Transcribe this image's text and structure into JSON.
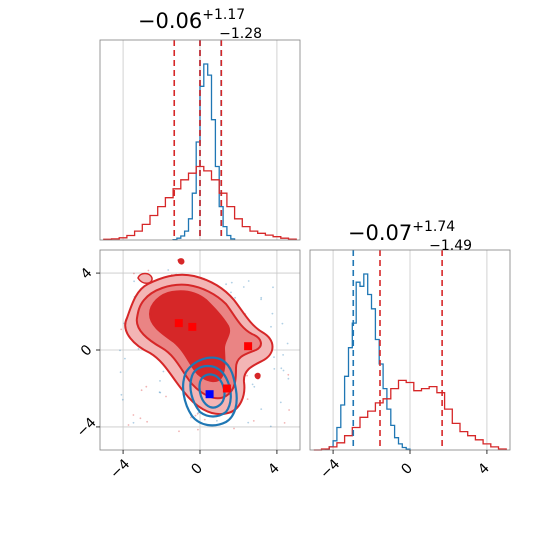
{
  "chart_data": [
    {
      "type": "histogram",
      "panel": "top-left marginal (parameter 1)",
      "title": {
        "median": "−0.06",
        "upper": "+1.17",
        "lower": "−1.28"
      },
      "xlim": [
        -5.2,
        5.2
      ],
      "series": [
        {
          "color": "#1f77b4",
          "bins": [
            -1.4,
            -1.2,
            -1.0,
            -0.8,
            -0.6,
            -0.4,
            -0.2,
            0.0,
            0.2,
            0.4,
            0.6,
            0.8,
            1.0,
            1.2,
            1.4,
            1.6,
            1.8
          ],
          "counts": [
            2,
            8,
            18,
            40,
            95,
            210,
            440,
            690,
            790,
            740,
            540,
            330,
            150,
            60,
            20,
            5
          ],
          "quantile_lines": [
            0.0,
            1.1
          ]
        },
        {
          "color": "#d62728",
          "bins": [
            -5.0,
            -4.6,
            -4.2,
            -3.8,
            -3.4,
            -3.0,
            -2.6,
            -2.2,
            -1.8,
            -1.4,
            -1.0,
            -0.6,
            -0.2,
            0.2,
            0.6,
            1.0,
            1.4,
            1.8,
            2.2,
            2.6,
            3.0,
            3.4,
            3.8,
            4.2,
            4.6,
            5.0
          ],
          "counts": [
            3,
            5,
            10,
            20,
            40,
            70,
            110,
            150,
            190,
            230,
            270,
            300,
            330,
            310,
            270,
            210,
            150,
            95,
            60,
            40,
            30,
            22,
            15,
            8,
            4
          ],
          "quantile_lines": [
            -1.34,
            0.0,
            1.11
          ]
        }
      ]
    },
    {
      "type": "contour",
      "panel": "bottom-left joint (parameter 1 vs parameter 2)",
      "xlim": [
        -5.2,
        5.2
      ],
      "ylim": [
        -5.2,
        5.2
      ],
      "xticks": [
        "−4",
        "0",
        "4"
      ],
      "yticks": [
        "−4",
        "0",
        "4"
      ],
      "series": [
        {
          "color": "#d62728",
          "levels": 3,
          "markers": [
            [
              -1.1,
              1.4
            ],
            [
              -0.4,
              1.2
            ],
            [
              2.5,
              0.2
            ],
            [
              1.4,
              -2.0
            ]
          ]
        },
        {
          "color": "#1f77b4",
          "levels": 3,
          "markers": [
            [
              0.5,
              -2.3
            ]
          ]
        }
      ]
    },
    {
      "type": "histogram",
      "panel": "bottom-right marginal (parameter 2)",
      "title": {
        "median": "−0.07",
        "upper": "+1.74",
        "lower": "−1.49"
      },
      "xlim": [
        -5.2,
        5.2
      ],
      "xticks": [
        "−4",
        "0",
        "4"
      ],
      "series": [
        {
          "color": "#1f77b4",
          "bins": [
            -4.4,
            -4.2,
            -4.0,
            -3.8,
            -3.6,
            -3.4,
            -3.2,
            -3.0,
            -2.8,
            -2.6,
            -2.4,
            -2.2,
            -2.0,
            -1.8,
            -1.6,
            -1.4,
            -1.2,
            -1.0,
            -0.8,
            -0.6,
            -0.4,
            -0.2,
            0.0
          ],
          "counts": [
            3,
            15,
            45,
            110,
            220,
            360,
            500,
            620,
            820,
            800,
            860,
            760,
            690,
            540,
            420,
            300,
            200,
            120,
            60,
            30,
            12,
            4
          ],
          "quantile_lines": [
            -2.95
          ]
        },
        {
          "color": "#d62728",
          "bins": [
            -5.0,
            -4.6,
            -4.2,
            -3.8,
            -3.4,
            -3.0,
            -2.6,
            -2.2,
            -1.8,
            -1.4,
            -1.0,
            -0.6,
            -0.2,
            0.2,
            0.6,
            1.0,
            1.4,
            1.8,
            2.2,
            2.6,
            3.0,
            3.4,
            3.8,
            4.2,
            4.6,
            5.0
          ],
          "counts": [
            0,
            5,
            15,
            35,
            70,
            110,
            160,
            190,
            230,
            250,
            300,
            340,
            330,
            290,
            300,
            310,
            280,
            200,
            130,
            90,
            70,
            50,
            30,
            15,
            5
          ],
          "quantile_lines": [
            -1.56,
            1.67
          ]
        }
      ]
    }
  ]
}
